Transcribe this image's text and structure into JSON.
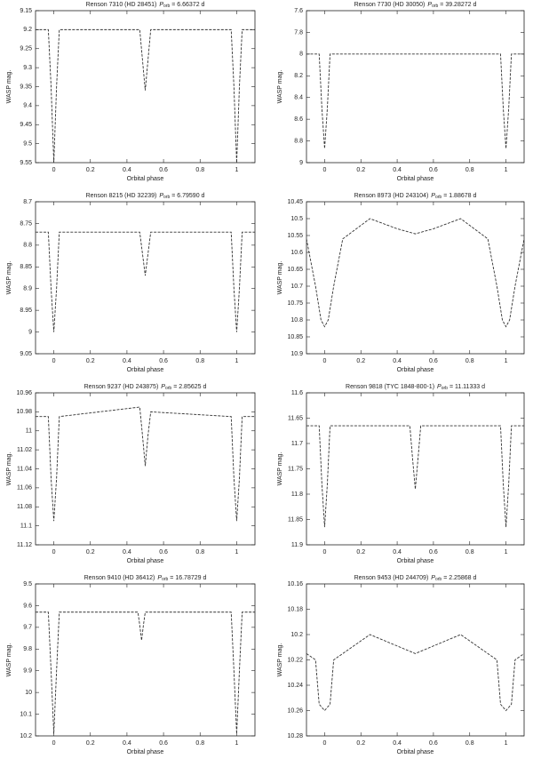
{
  "chart_data": [
    {
      "type": "line",
      "title": {
        "name": "Renson 7310 (HD 28451)",
        "symbol": "P",
        "subscript": "orb",
        "value": "= 6.66372 d"
      },
      "x_label": "Orbital phase",
      "y_label": "WASP mag.",
      "y_reversed": true,
      "xlim": [
        -0.1,
        1.1
      ],
      "xticks": [
        0,
        0.2,
        0.4,
        0.6,
        0.8,
        1
      ],
      "ylim": [
        9.15,
        9.55
      ],
      "yticks": [
        9.15,
        9.2,
        9.25,
        9.3,
        9.35,
        9.4,
        9.45,
        9.5,
        9.55
      ],
      "x": [
        -0.1,
        -0.03,
        -0.015,
        0,
        0.015,
        0.03,
        0.47,
        0.485,
        0.5,
        0.515,
        0.53,
        0.97,
        0.985,
        1,
        1.015,
        1.03,
        1.1
      ],
      "series": [
        {
          "color": "#333333",
          "values": [
            9.2,
            9.2,
            9.35,
            9.55,
            9.35,
            9.2,
            9.2,
            9.28,
            9.36,
            9.28,
            9.2,
            9.2,
            9.35,
            9.55,
            9.35,
            9.2,
            9.2
          ]
        }
      ]
    },
    {
      "type": "line",
      "title": {
        "name": "Renson 7730 (HD 30050)",
        "symbol": "P",
        "subscript": "orb",
        "value": "= 39.28272 d"
      },
      "x_label": "Orbital phase",
      "y_label": "WASP mag.",
      "y_reversed": true,
      "xlim": [
        -0.1,
        1.1
      ],
      "xticks": [
        0,
        0.2,
        0.4,
        0.6,
        0.8,
        1
      ],
      "ylim": [
        7.6,
        9
      ],
      "yticks": [
        7.6,
        7.8,
        8,
        8.2,
        8.4,
        8.6,
        8.8,
        9
      ],
      "x": [
        -0.1,
        -0.03,
        -0.015,
        0,
        0.015,
        0.03,
        0.97,
        0.985,
        1,
        1.015,
        1.03,
        1.1
      ],
      "series": [
        {
          "color": "#333333",
          "values": [
            8,
            8,
            8.5,
            8.87,
            8.5,
            8,
            8,
            8.5,
            8.87,
            8.5,
            8,
            8
          ]
        }
      ]
    },
    {
      "type": "line",
      "title": {
        "name": "Renson 8215 (HD 32239)",
        "symbol": "P",
        "subscript": "orb",
        "value": "= 6.79590 d"
      },
      "x_label": "Orbital phase",
      "y_label": "WASP mag.",
      "y_reversed": true,
      "xlim": [
        -0.1,
        1.1
      ],
      "xticks": [
        0,
        0.2,
        0.4,
        0.6,
        0.8,
        1
      ],
      "ylim": [
        8.7,
        9.05
      ],
      "yticks": [
        8.7,
        8.75,
        8.8,
        8.85,
        8.9,
        8.95,
        9,
        9.05
      ],
      "x": [
        -0.1,
        -0.03,
        -0.015,
        0,
        0.015,
        0.03,
        0.47,
        0.485,
        0.5,
        0.515,
        0.53,
        0.97,
        0.985,
        1,
        1.015,
        1.03,
        1.1
      ],
      "series": [
        {
          "color": "#333333",
          "values": [
            8.77,
            8.77,
            8.9,
            9.0,
            8.9,
            8.77,
            8.77,
            8.82,
            8.87,
            8.82,
            8.77,
            8.77,
            8.9,
            9.0,
            8.9,
            8.77,
            8.77
          ]
        }
      ]
    },
    {
      "type": "line",
      "title": {
        "name": "Renson 8973 (HD 243104)",
        "symbol": "P",
        "subscript": "orb",
        "value": "= 1.88678 d"
      },
      "x_label": "Orbital phase",
      "y_label": "WASP mag.",
      "y_reversed": true,
      "xlim": [
        -0.1,
        1.1
      ],
      "xticks": [
        0,
        0.2,
        0.4,
        0.6,
        0.8,
        1
      ],
      "ylim": [
        10.45,
        10.9
      ],
      "yticks": [
        10.45,
        10.5,
        10.55,
        10.6,
        10.65,
        10.7,
        10.75,
        10.8,
        10.85,
        10.9
      ],
      "x": [
        -0.1,
        -0.05,
        -0.02,
        0,
        0.02,
        0.05,
        0.1,
        0.25,
        0.4,
        0.5,
        0.6,
        0.75,
        0.9,
        0.95,
        0.98,
        1,
        1.02,
        1.05,
        1.1
      ],
      "series": [
        {
          "color": "#333333",
          "values": [
            10.56,
            10.7,
            10.8,
            10.82,
            10.8,
            10.7,
            10.56,
            10.5,
            10.53,
            10.545,
            10.53,
            10.5,
            10.56,
            10.7,
            10.8,
            10.82,
            10.8,
            10.7,
            10.56
          ]
        }
      ]
    },
    {
      "type": "line",
      "title": {
        "name": "Renson 9237 (HD 243875)",
        "symbol": "P",
        "subscript": "orb",
        "value": "= 2.85625 d"
      },
      "x_label": "Orbital phase",
      "y_label": "WASP mag.",
      "y_reversed": true,
      "xlim": [
        -0.1,
        1.1
      ],
      "xticks": [
        0,
        0.2,
        0.4,
        0.6,
        0.8,
        1
      ],
      "ylim": [
        10.96,
        11.12
      ],
      "yticks": [
        10.96,
        10.98,
        11,
        11.02,
        11.04,
        11.06,
        11.08,
        11.1,
        11.12
      ],
      "x": [
        -0.1,
        -0.03,
        -0.015,
        0,
        0.015,
        0.03,
        0.47,
        0.485,
        0.5,
        0.515,
        0.53,
        0.97,
        0.985,
        1,
        1.015,
        1.03,
        1.1
      ],
      "series": [
        {
          "color": "#333333",
          "values": [
            10.985,
            10.985,
            11.05,
            11.095,
            11.05,
            10.985,
            10.975,
            11.005,
            11.037,
            11.005,
            10.98,
            10.985,
            11.05,
            11.095,
            11.05,
            10.985,
            10.985
          ]
        }
      ]
    },
    {
      "type": "line",
      "title": {
        "name": "Renson 9818 (TYC 1848-800-1)",
        "symbol": "P",
        "subscript": "orb",
        "value": "= 11.11333 d"
      },
      "x_label": "Orbital phase",
      "y_label": "WASP mag.",
      "y_reversed": true,
      "xlim": [
        -0.1,
        1.1
      ],
      "xticks": [
        0,
        0.2,
        0.4,
        0.6,
        0.8,
        1
      ],
      "ylim": [
        11.6,
        11.9
      ],
      "yticks": [
        11.6,
        11.65,
        11.7,
        11.75,
        11.8,
        11.85,
        11.9
      ],
      "x": [
        -0.1,
        -0.03,
        -0.015,
        0,
        0.015,
        0.03,
        0.47,
        0.485,
        0.5,
        0.515,
        0.53,
        0.97,
        0.985,
        1,
        1.015,
        1.03,
        1.1
      ],
      "series": [
        {
          "color": "#333333",
          "values": [
            11.665,
            11.665,
            11.78,
            11.865,
            11.78,
            11.665,
            11.665,
            11.73,
            11.79,
            11.73,
            11.665,
            11.665,
            11.78,
            11.865,
            11.78,
            11.665,
            11.665
          ]
        }
      ]
    },
    {
      "type": "line",
      "title": {
        "name": "Renson 9410 (HD 36412)",
        "symbol": "P",
        "subscript": "orb",
        "value": "= 16.78729 d"
      },
      "x_label": "Orbital phase",
      "y_label": "WASP mag.",
      "y_reversed": true,
      "xlim": [
        -0.1,
        1.1
      ],
      "xticks": [
        0,
        0.2,
        0.4,
        0.6,
        0.8,
        1
      ],
      "ylim": [
        9.5,
        10.2
      ],
      "yticks": [
        9.5,
        9.6,
        9.7,
        9.8,
        9.9,
        10,
        10.1,
        10.2
      ],
      "x": [
        -0.1,
        -0.03,
        -0.015,
        0,
        0.015,
        0.03,
        0.46,
        0.47,
        0.48,
        0.49,
        0.5,
        0.97,
        0.985,
        1,
        1.015,
        1.03,
        1.1
      ],
      "series": [
        {
          "color": "#333333",
          "values": [
            9.63,
            9.63,
            9.9,
            10.19,
            9.9,
            9.63,
            9.63,
            9.69,
            9.76,
            9.69,
            9.63,
            9.63,
            9.9,
            10.19,
            9.9,
            9.63,
            9.63
          ]
        }
      ]
    },
    {
      "type": "line",
      "title": {
        "name": "Renson 9453 (HD 244709)",
        "symbol": "P",
        "subscript": "orb",
        "value": "= 2.25868 d"
      },
      "x_label": "Orbital phase",
      "y_label": "WASP mag.",
      "y_reversed": true,
      "xlim": [
        -0.1,
        1.1
      ],
      "xticks": [
        0,
        0.2,
        0.4,
        0.6,
        0.8,
        1
      ],
      "ylim": [
        10.16,
        10.28
      ],
      "yticks": [
        10.16,
        10.18,
        10.2,
        10.22,
        10.24,
        10.26,
        10.28
      ],
      "x": [
        -0.1,
        -0.05,
        -0.03,
        0,
        0.03,
        0.05,
        0.25,
        0.5,
        0.75,
        0.95,
        0.97,
        1,
        1.03,
        1.05,
        1.1
      ],
      "series": [
        {
          "color": "#333333",
          "values": [
            10.215,
            10.22,
            10.255,
            10.26,
            10.255,
            10.22,
            10.2,
            10.215,
            10.2,
            10.22,
            10.255,
            10.26,
            10.255,
            10.22,
            10.215
          ]
        }
      ]
    }
  ]
}
